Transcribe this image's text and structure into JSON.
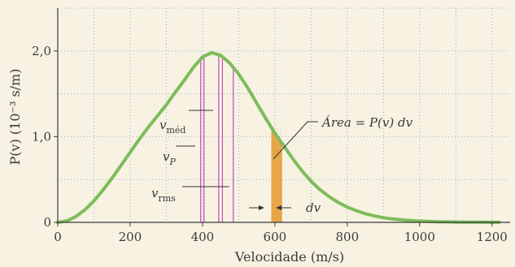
{
  "chart_data": {
    "type": "line",
    "title": "",
    "xlabel": "Velocidade (m/s)",
    "ylabel": "P(v) (10⁻³ s/m)",
    "xlim": [
      0,
      1250
    ],
    "ylim": [
      0,
      2.5
    ],
    "x_ticks": [
      0,
      200,
      400,
      600,
      800,
      1000,
      1200
    ],
    "x_tick_labels": [
      "0",
      "200",
      "400",
      "600",
      "800",
      "1000",
      "1200"
    ],
    "y_ticks": [
      0,
      1.0,
      2.0
    ],
    "y_tick_labels": [
      "0",
      "1,0",
      "2,0"
    ],
    "grid": true,
    "series": [
      {
        "x": [
          0,
          25,
          50,
          75,
          100,
          125,
          150,
          175,
          200,
          225,
          250,
          275,
          300,
          325,
          350,
          375,
          400,
          425,
          450,
          475,
          500,
          525,
          550,
          575,
          600,
          625,
          650,
          675,
          700,
          725,
          750,
          775,
          800,
          825,
          850,
          875,
          900,
          925,
          950,
          975,
          1000,
          1025,
          1050,
          1075,
          1100,
          1125,
          1150,
          1175,
          1200,
          1220
        ],
        "y": [
          0.0,
          0.017,
          0.067,
          0.147,
          0.251,
          0.377,
          0.516,
          0.665,
          0.818,
          0.968,
          1.11,
          1.24,
          1.37,
          1.52,
          1.66,
          1.81,
          1.93,
          1.98,
          1.95,
          1.86,
          1.73,
          1.57,
          1.39,
          1.21,
          1.04,
          0.89,
          0.74,
          0.6,
          0.48,
          0.38,
          0.3,
          0.233,
          0.178,
          0.136,
          0.101,
          0.075,
          0.055,
          0.04,
          0.029,
          0.021,
          0.015,
          0.011,
          0.0075,
          0.0055,
          0.004,
          0.003,
          0.002,
          0.0015,
          0.001,
          0.001
        ],
        "color": "#7cbc5a"
      }
    ],
    "markers": [
      {
        "label": "v_P",
        "x": 395
      },
      {
        "label": "v_méd",
        "x": 445
      },
      {
        "label": "v_rms",
        "x": 485
      },
      {
        "label": "v_P-2",
        "x": 404
      },
      {
        "label": "v_méd-2",
        "x": 455
      }
    ],
    "band": {
      "x0": 590,
      "x1": 620,
      "color": "#e8a84a"
    },
    "annotations": {
      "vmed": {
        "main": "v",
        "sub": "méd"
      },
      "vp": {
        "main": "v",
        "sub": "P"
      },
      "vrms": {
        "main": "v",
        "sub": "rms"
      },
      "area": "Área = P(v)  dv",
      "dv": "dv"
    },
    "colors": {
      "background": "#f7f2e2",
      "grid": "#8fb0d3",
      "axis": "#3a3a3a",
      "marker": "#c44bb5",
      "curve": "#7cbc5a",
      "band": "#e8a84a",
      "leader": "#333333"
    }
  }
}
